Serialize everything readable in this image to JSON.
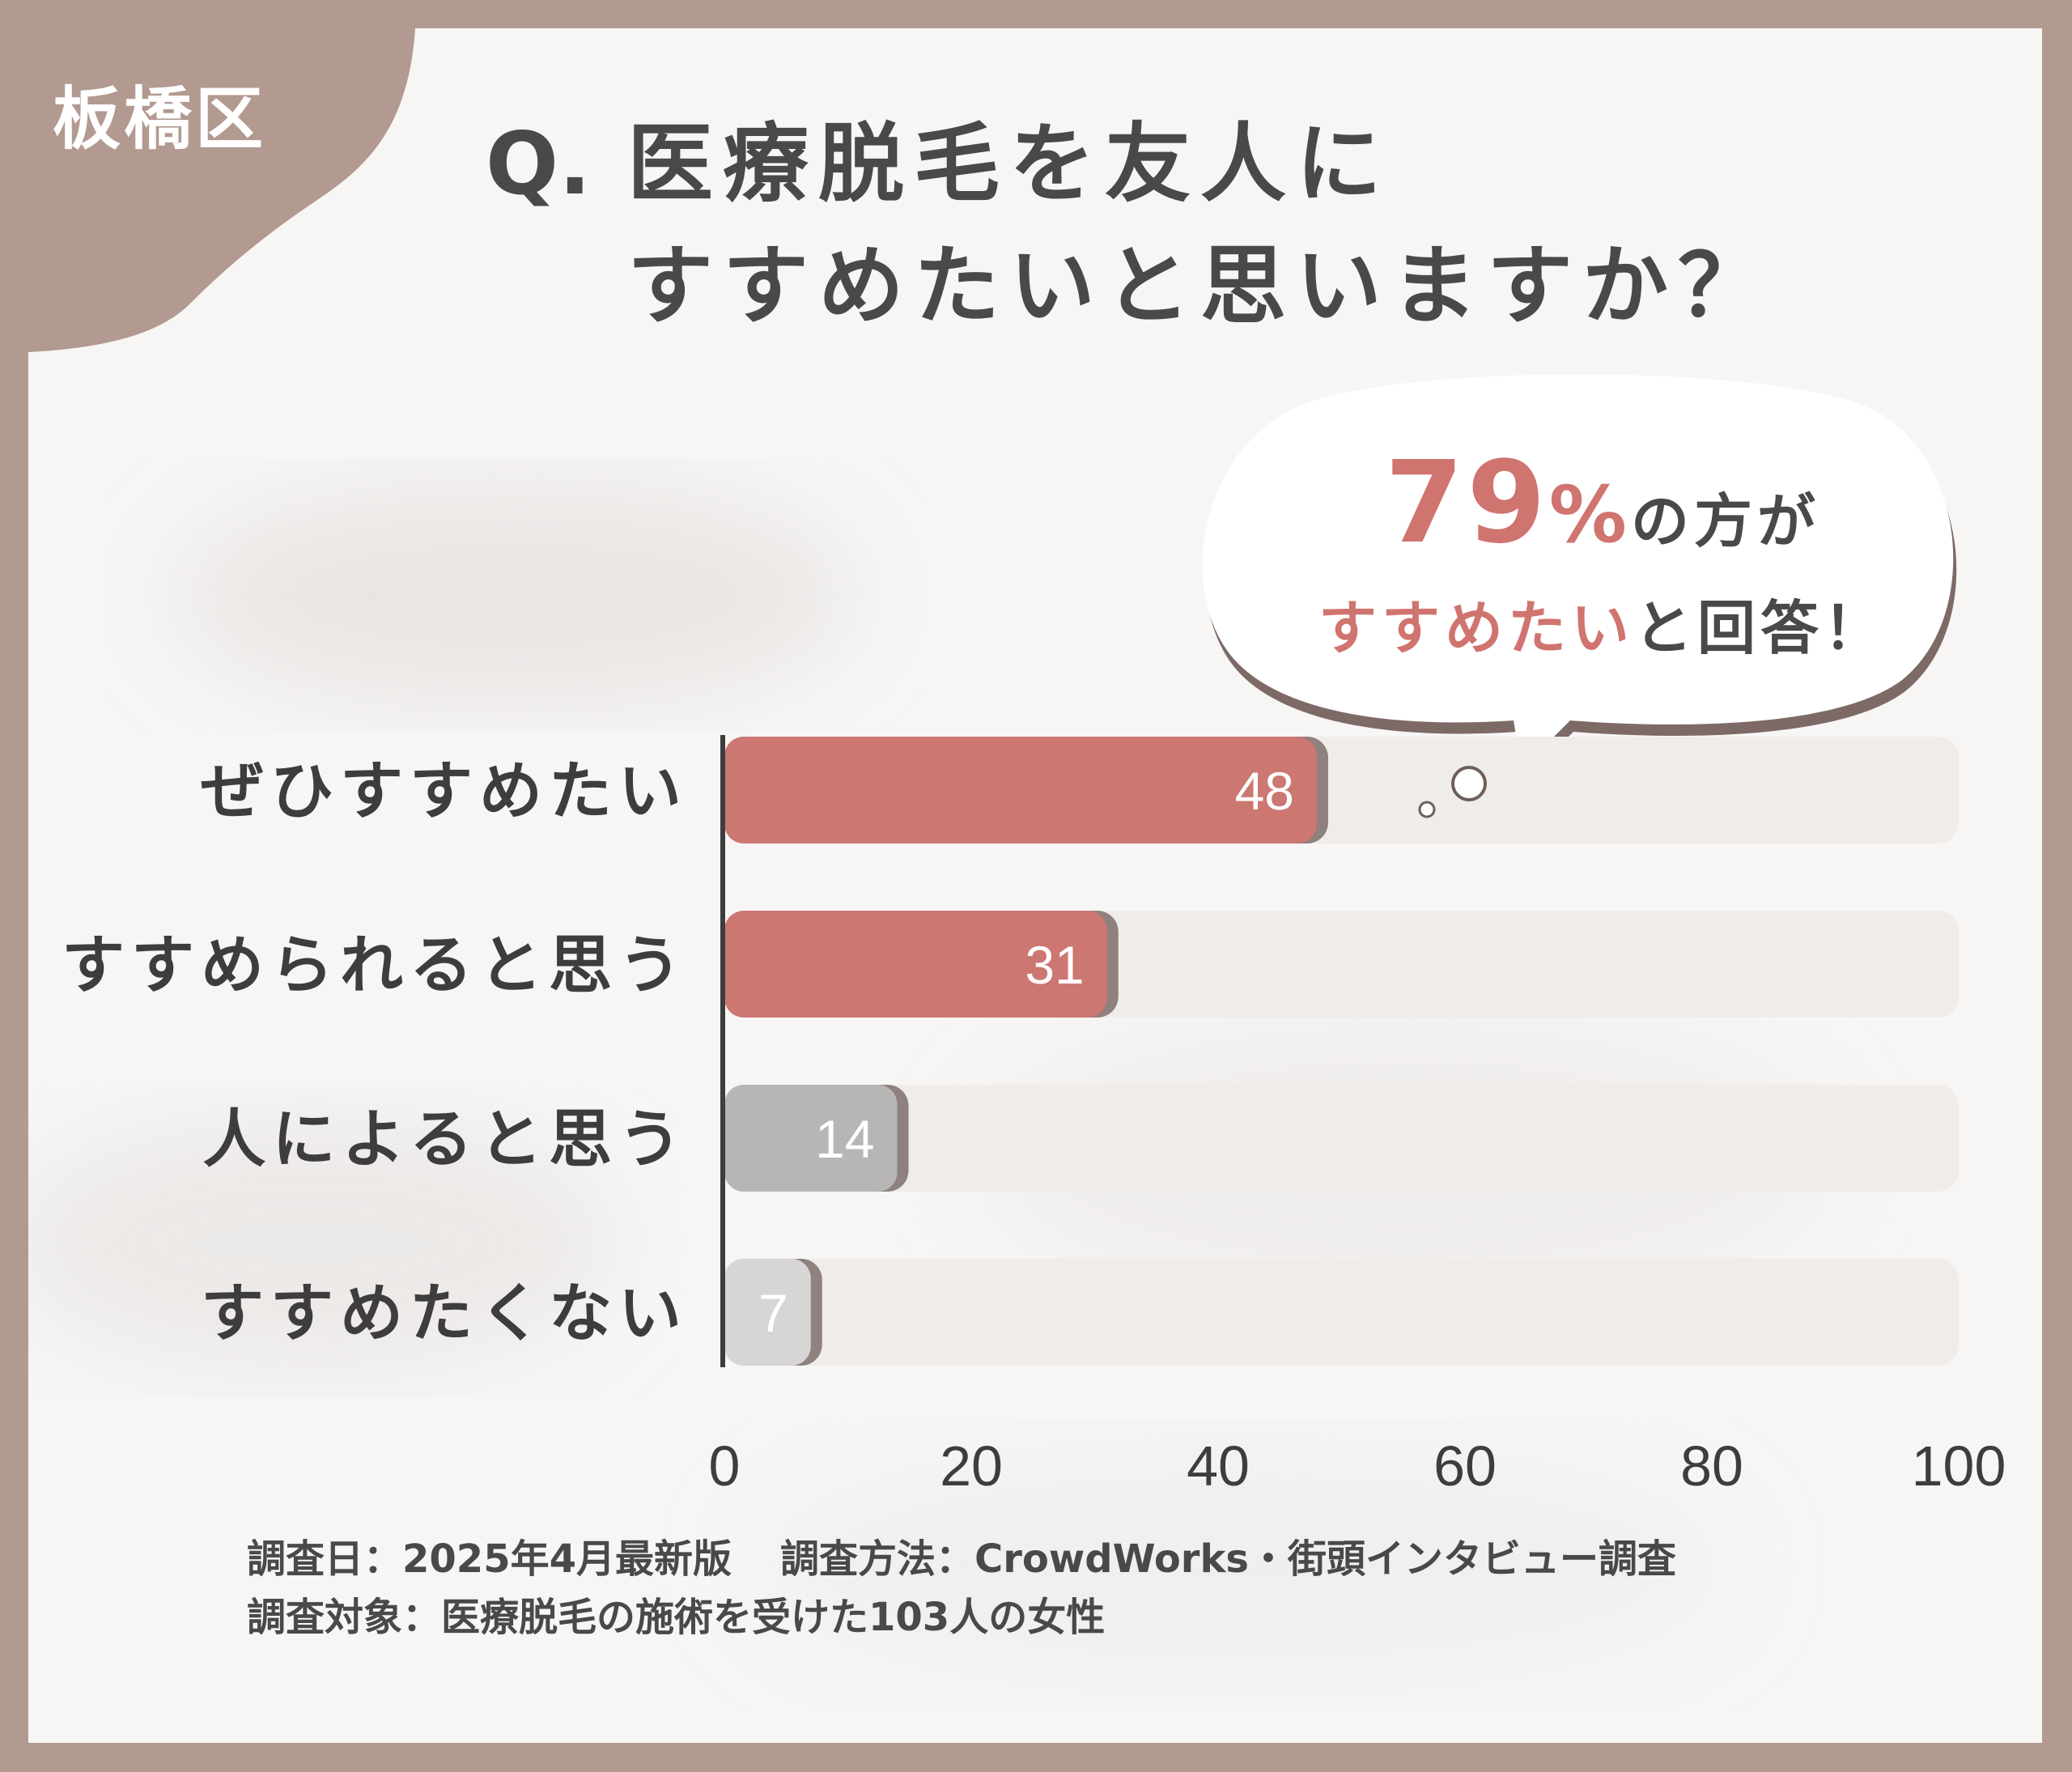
{
  "region": "板橋区",
  "title": {
    "prefix": "Q.",
    "line1": "医療脱毛を友人に",
    "line2": "すすめたいと思いますか？"
  },
  "callout": {
    "number": "79",
    "percent": "%",
    "rest1": "の方が",
    "highlight": "すすめたい",
    "rest2": "と回答！"
  },
  "chart_data": {
    "type": "bar",
    "orientation": "horizontal",
    "categories": [
      "ぜひすすめたい",
      "すすめられると思う",
      "人によると思う",
      "すすめたくない"
    ],
    "values": [
      48,
      31,
      14,
      7
    ],
    "xlim": [
      0,
      100
    ],
    "xticks": [
      0,
      20,
      40,
      60,
      80,
      100
    ],
    "bar_colors": [
      "#cd7772",
      "#cd7772",
      "#b8b6b5",
      "#d7d6d5"
    ],
    "track_color": "#efecea"
  },
  "footer": {
    "date": "調査日：2025年4月最新版",
    "method": "調査方法：CrowdWorks・街頭インタビュー調査",
    "target": "調査対象：医療脱毛の施術を受けた103人の女性"
  }
}
